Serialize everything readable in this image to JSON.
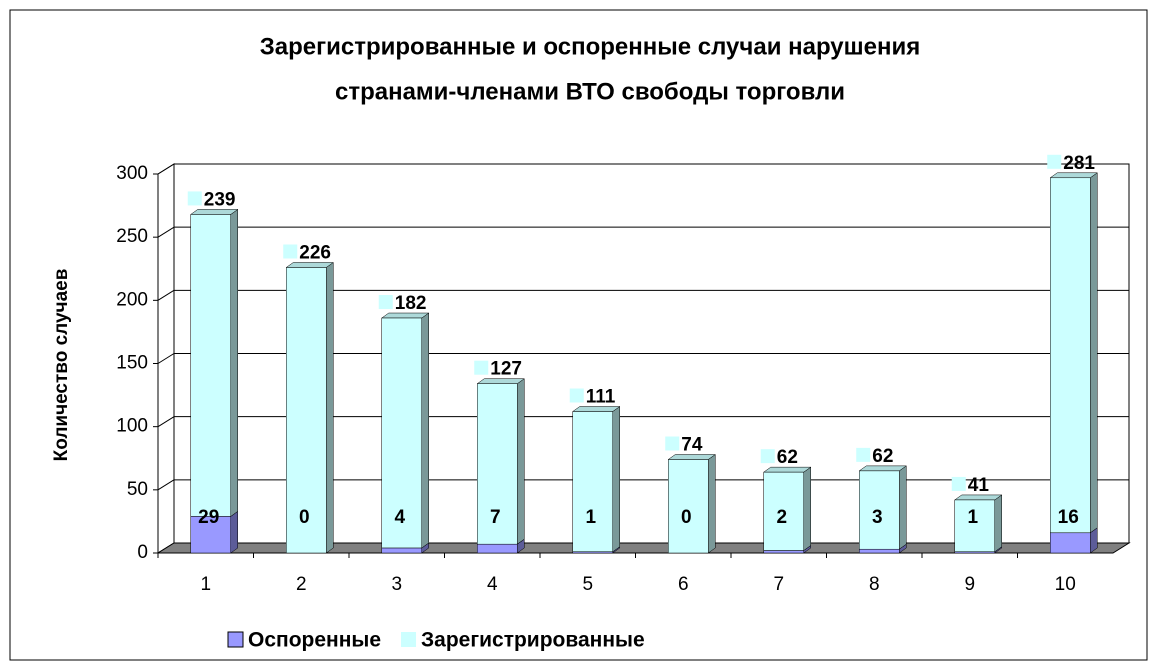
{
  "chart_data": {
    "type": "bar",
    "stacked": true,
    "title": [
      "Зарегистрированные и оспоренные случаи нарушения",
      "странами-членами ВТО свободы торговли"
    ],
    "y_label": "Количество случаев",
    "categories": [
      "1",
      "2",
      "3",
      "4",
      "5",
      "6",
      "7",
      "8",
      "9",
      "10"
    ],
    "series": [
      {
        "name": "Оспоренные",
        "color": "#9999ff",
        "values": [
          29,
          0,
          4,
          7,
          1,
          0,
          2,
          3,
          1,
          16
        ]
      },
      {
        "name": "Зарегистрированные",
        "color": "#ccffff",
        "values": [
          239,
          226,
          182,
          127,
          111,
          74,
          62,
          62,
          41,
          281
        ]
      }
    ],
    "ylim": [
      0,
      300
    ],
    "yticks": [
      0,
      50,
      100,
      150,
      200,
      250,
      300
    ],
    "grid": true,
    "legend": "bottom"
  }
}
